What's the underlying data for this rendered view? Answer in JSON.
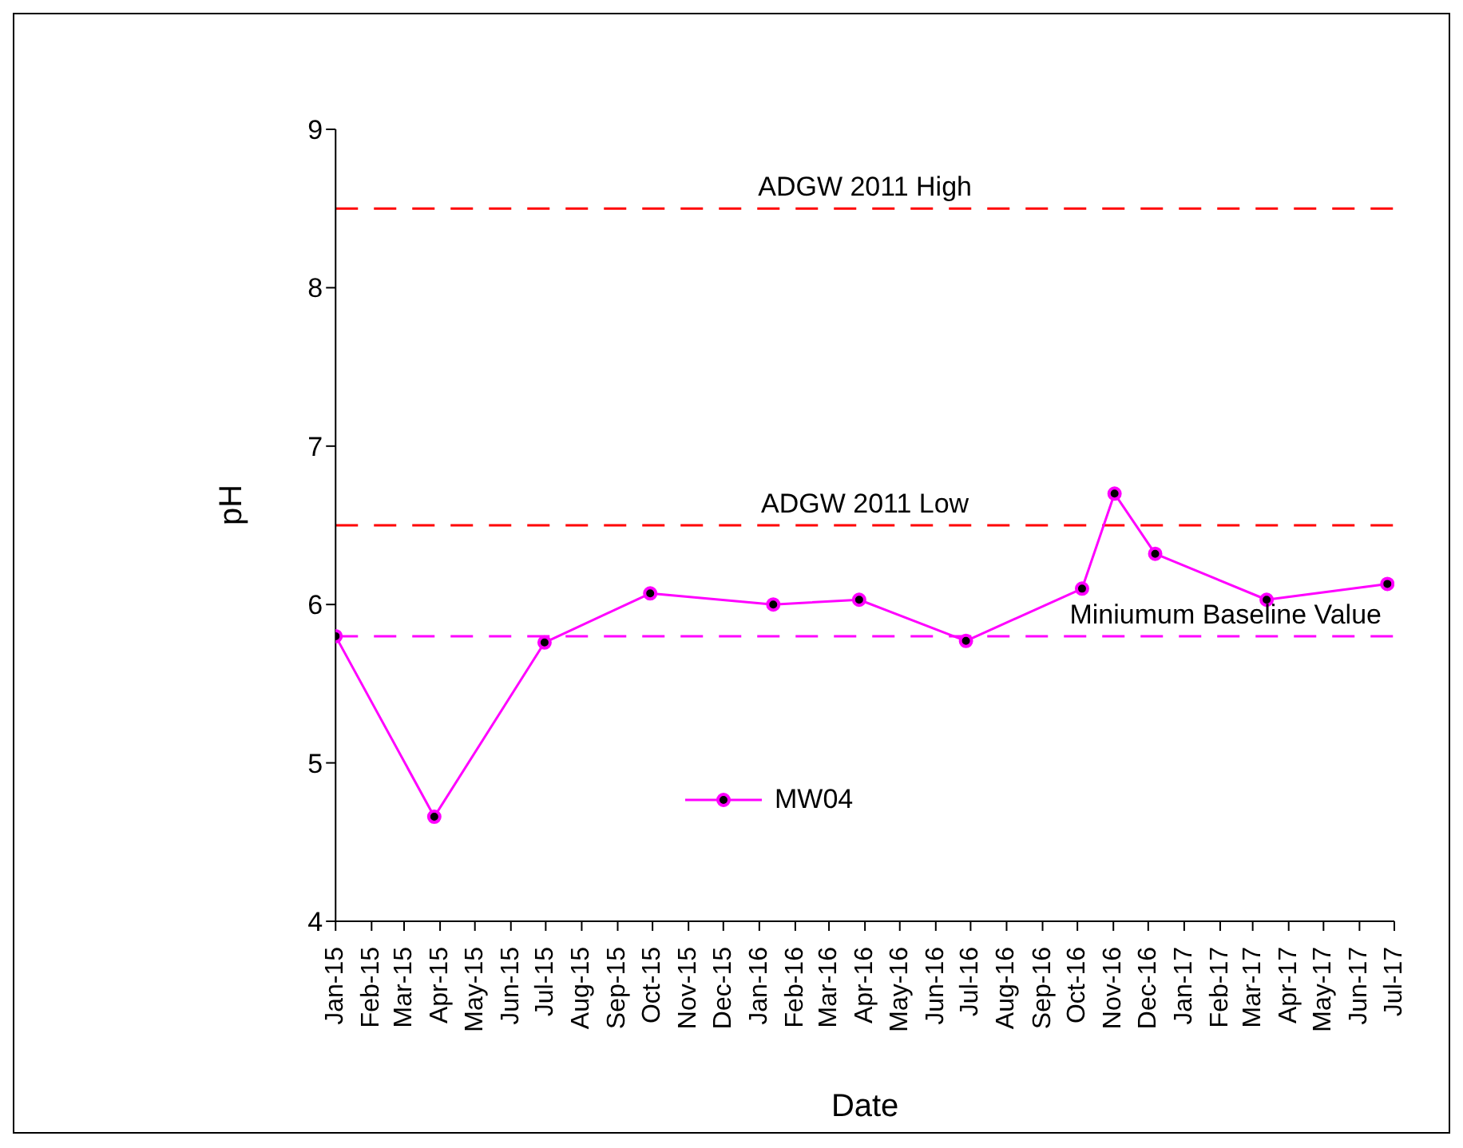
{
  "chart_data": {
    "type": "line",
    "xlabel": "Date",
    "ylabel": "pH",
    "x": [
      "2015-01-01",
      "2015-03-27",
      "2015-06-30",
      "2015-09-29",
      "2016-01-13",
      "2016-03-27",
      "2016-06-27",
      "2016-10-05",
      "2016-11-02",
      "2016-12-07",
      "2017-03-13",
      "2017-06-25"
    ],
    "series": [
      {
        "name": "MW04",
        "color": "#ff00ff",
        "values": [
          5.8,
          4.66,
          5.76,
          6.07,
          6.0,
          6.03,
          5.77,
          6.1,
          6.7,
          6.32,
          6.03,
          6.13
        ]
      }
    ],
    "xlim": [
      "2015-01",
      "2017-07"
    ],
    "xticks": [
      {
        "value": "2015-01",
        "label": "Jan-15"
      },
      {
        "value": "2015-02",
        "label": "Feb-15"
      },
      {
        "value": "2015-03",
        "label": "Mar-15"
      },
      {
        "value": "2015-04",
        "label": "Apr-15"
      },
      {
        "value": "2015-05",
        "label": "May-15"
      },
      {
        "value": "2015-06",
        "label": "Jun-15"
      },
      {
        "value": "2015-07",
        "label": "Jul-15"
      },
      {
        "value": "2015-08",
        "label": "Aug-15"
      },
      {
        "value": "2015-09",
        "label": "Sep-15"
      },
      {
        "value": "2015-10",
        "label": "Oct-15"
      },
      {
        "value": "2015-11",
        "label": "Nov-15"
      },
      {
        "value": "2015-12",
        "label": "Dec-15"
      },
      {
        "value": "2016-01",
        "label": "Jan-16"
      },
      {
        "value": "2016-02",
        "label": "Feb-16"
      },
      {
        "value": "2016-03",
        "label": "Mar-16"
      },
      {
        "value": "2016-04",
        "label": "Apr-16"
      },
      {
        "value": "2016-05",
        "label": "May-16"
      },
      {
        "value": "2016-06",
        "label": "Jun-16"
      },
      {
        "value": "2016-07",
        "label": "Jul-16"
      },
      {
        "value": "2016-08",
        "label": "Aug-16"
      },
      {
        "value": "2016-09",
        "label": "Sep-16"
      },
      {
        "value": "2016-10",
        "label": "Oct-16"
      },
      {
        "value": "2016-11",
        "label": "Nov-16"
      },
      {
        "value": "2016-12",
        "label": "Dec-16"
      },
      {
        "value": "2017-01",
        "label": "Jan-17"
      },
      {
        "value": "2017-02",
        "label": "Feb-17"
      },
      {
        "value": "2017-03",
        "label": "Mar-17"
      },
      {
        "value": "2017-04",
        "label": "Apr-17"
      },
      {
        "value": "2017-05",
        "label": "May-17"
      },
      {
        "value": "2017-06",
        "label": "Jun-17"
      },
      {
        "value": "2017-07",
        "label": "Jul-17"
      }
    ],
    "ylim": [
      4,
      9
    ],
    "yticks": [
      4,
      5,
      6,
      7,
      8,
      9
    ],
    "ref_lines": [
      {
        "axis": "y",
        "value": 8.5,
        "label": "ADGW 2011 High",
        "color": "#ff0000",
        "line_style": "dashed"
      },
      {
        "axis": "y",
        "value": 6.5,
        "label": "ADGW 2011 Low",
        "color": "#ff0000",
        "line_style": "dashed"
      },
      {
        "axis": "y",
        "value": 5.8,
        "label": "Miniumum Baseline Value",
        "color": "#ff00ff",
        "line_style": "dashed"
      }
    ],
    "grid": false,
    "legend": "bottom center",
    "marker": "circle",
    "line_style": "solid"
  }
}
